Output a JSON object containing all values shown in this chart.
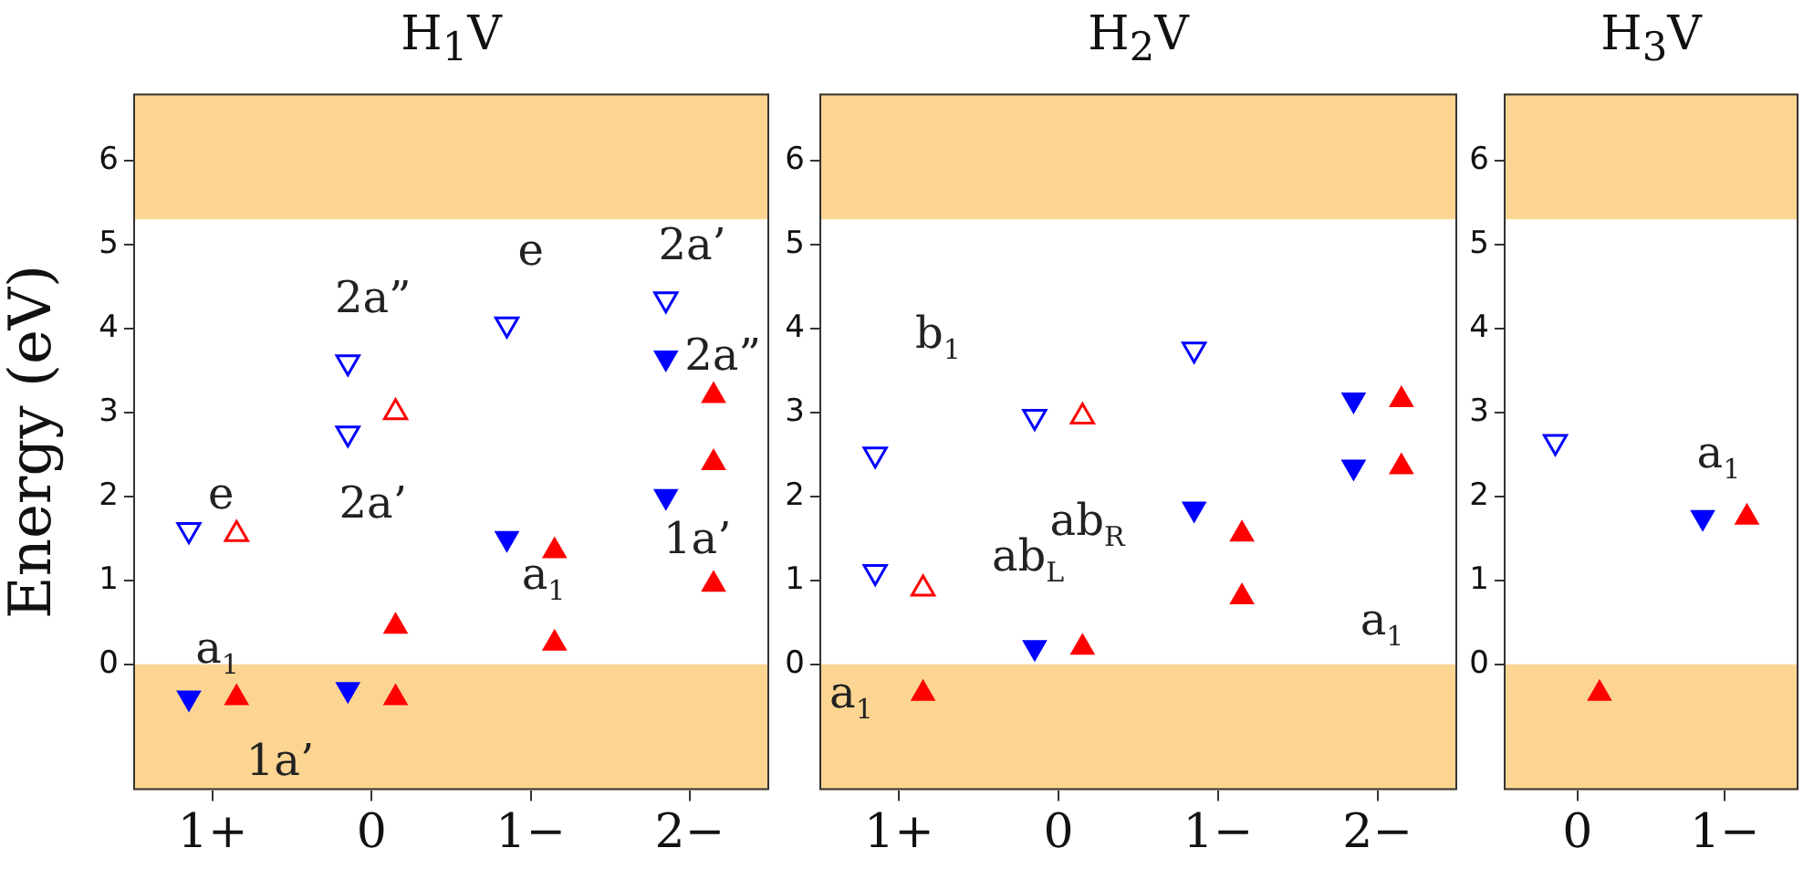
{
  "chart_data": [
    {
      "type": "scatter",
      "title": "H$_{1}$V",
      "ylabel": "Energy (eV)",
      "categories": [
        "1+",
        "0",
        "1−",
        "2−"
      ],
      "ylim": [
        -1.5,
        6.8
      ],
      "yticks": [
        0,
        1,
        2,
        3,
        4,
        5,
        6
      ],
      "grid": false,
      "marker": "triangle",
      "bands": [
        {
          "axis": "y",
          "from": -1.5,
          "to": 0,
          "color": "#fdd592"
        },
        {
          "axis": "y",
          "from": 5.3,
          "to": 6.8,
          "color": "#fdd592"
        }
      ],
      "series": [
        {
          "color": "#0000ff",
          "x": [
            "1+",
            "0",
            "1−",
            "2−",
            "2−"
          ],
          "values": [
            -0.4,
            -0.3,
            1.5,
            3.65,
            2.0
          ]
        },
        {
          "color": "#0000ff",
          "x": [
            "1+",
            "0",
            "0",
            "1−",
            "2−"
          ],
          "values": [
            1.6,
            3.6,
            2.75,
            4.05,
            4.35
          ]
        },
        {
          "color": "#ff0000",
          "x": [
            "1+",
            "0",
            "0",
            "1−",
            "1−",
            "2−",
            "2−",
            "2−"
          ],
          "values": [
            -0.4,
            0.45,
            -0.4,
            1.35,
            0.25,
            3.2,
            2.4,
            0.95
          ]
        },
        {
          "color": "#ff0000",
          "x": [
            "1+",
            "0"
          ],
          "values": [
            1.55,
            3.0
          ]
        }
      ],
      "annotations": [
        "e",
        "a$_{1}$",
        "1a’",
        "2a”",
        "2a’",
        "e",
        "a$_{1}$",
        "2a’",
        "2a”",
        "1a’"
      ]
    },
    {
      "type": "scatter",
      "title": "H$_{2}$V",
      "categories": [
        "1+",
        "0",
        "1−",
        "2−"
      ],
      "ylim": [
        -1.5,
        6.8
      ],
      "yticks": [
        0,
        1,
        2,
        3,
        4,
        5,
        6
      ],
      "grid": false,
      "marker": "triangle",
      "bands": [
        {
          "axis": "y",
          "from": -1.5,
          "to": 0,
          "color": "#fdd592"
        },
        {
          "axis": "y",
          "from": 5.3,
          "to": 6.8,
          "color": "#fdd592"
        }
      ],
      "series": [
        {
          "color": "#0000ff",
          "x": [
            "0",
            "1−",
            "2−",
            "2−"
          ],
          "values": [
            0.2,
            1.85,
            3.15,
            2.35
          ]
        },
        {
          "color": "#0000ff",
          "x": [
            "1+",
            "1+",
            "0",
            "1−"
          ],
          "values": [
            2.5,
            1.1,
            2.95,
            3.75
          ]
        },
        {
          "color": "#ff0000",
          "x": [
            "1+",
            "0",
            "1−",
            "1−",
            "2−",
            "2−"
          ],
          "values": [
            -0.35,
            0.2,
            1.55,
            0.8,
            3.15,
            2.35
          ]
        },
        {
          "color": "#ff0000",
          "x": [
            "1+",
            "0"
          ],
          "values": [
            0.9,
            2.95
          ]
        }
      ],
      "annotations": [
        "b$_{1}$",
        "ab$_{L}$",
        "ab$_{R}$",
        "a$_{1}$",
        "a$_{1}$"
      ]
    },
    {
      "type": "scatter",
      "title": "H$_{3}$V",
      "categories": [
        "0",
        "1−"
      ],
      "ylim": [
        -1.5,
        6.8
      ],
      "yticks": [
        0,
        1,
        2,
        3,
        4,
        5,
        6
      ],
      "grid": false,
      "marker": "triangle",
      "bands": [
        {
          "axis": "y",
          "from": -1.5,
          "to": 0,
          "color": "#fdd592"
        },
        {
          "axis": "y",
          "from": 5.3,
          "to": 6.8,
          "color": "#fdd592"
        }
      ],
      "series": [
        {
          "color": "#0000ff",
          "x": [
            "1−"
          ],
          "values": [
            1.75
          ]
        },
        {
          "color": "#0000ff",
          "x": [
            "0"
          ],
          "values": [
            2.65
          ]
        },
        {
          "color": "#ff0000",
          "x": [
            "0",
            "1−"
          ],
          "values": [
            -0.35,
            1.75
          ]
        }
      ],
      "annotations": [
        "a$_{1}$"
      ]
    }
  ]
}
